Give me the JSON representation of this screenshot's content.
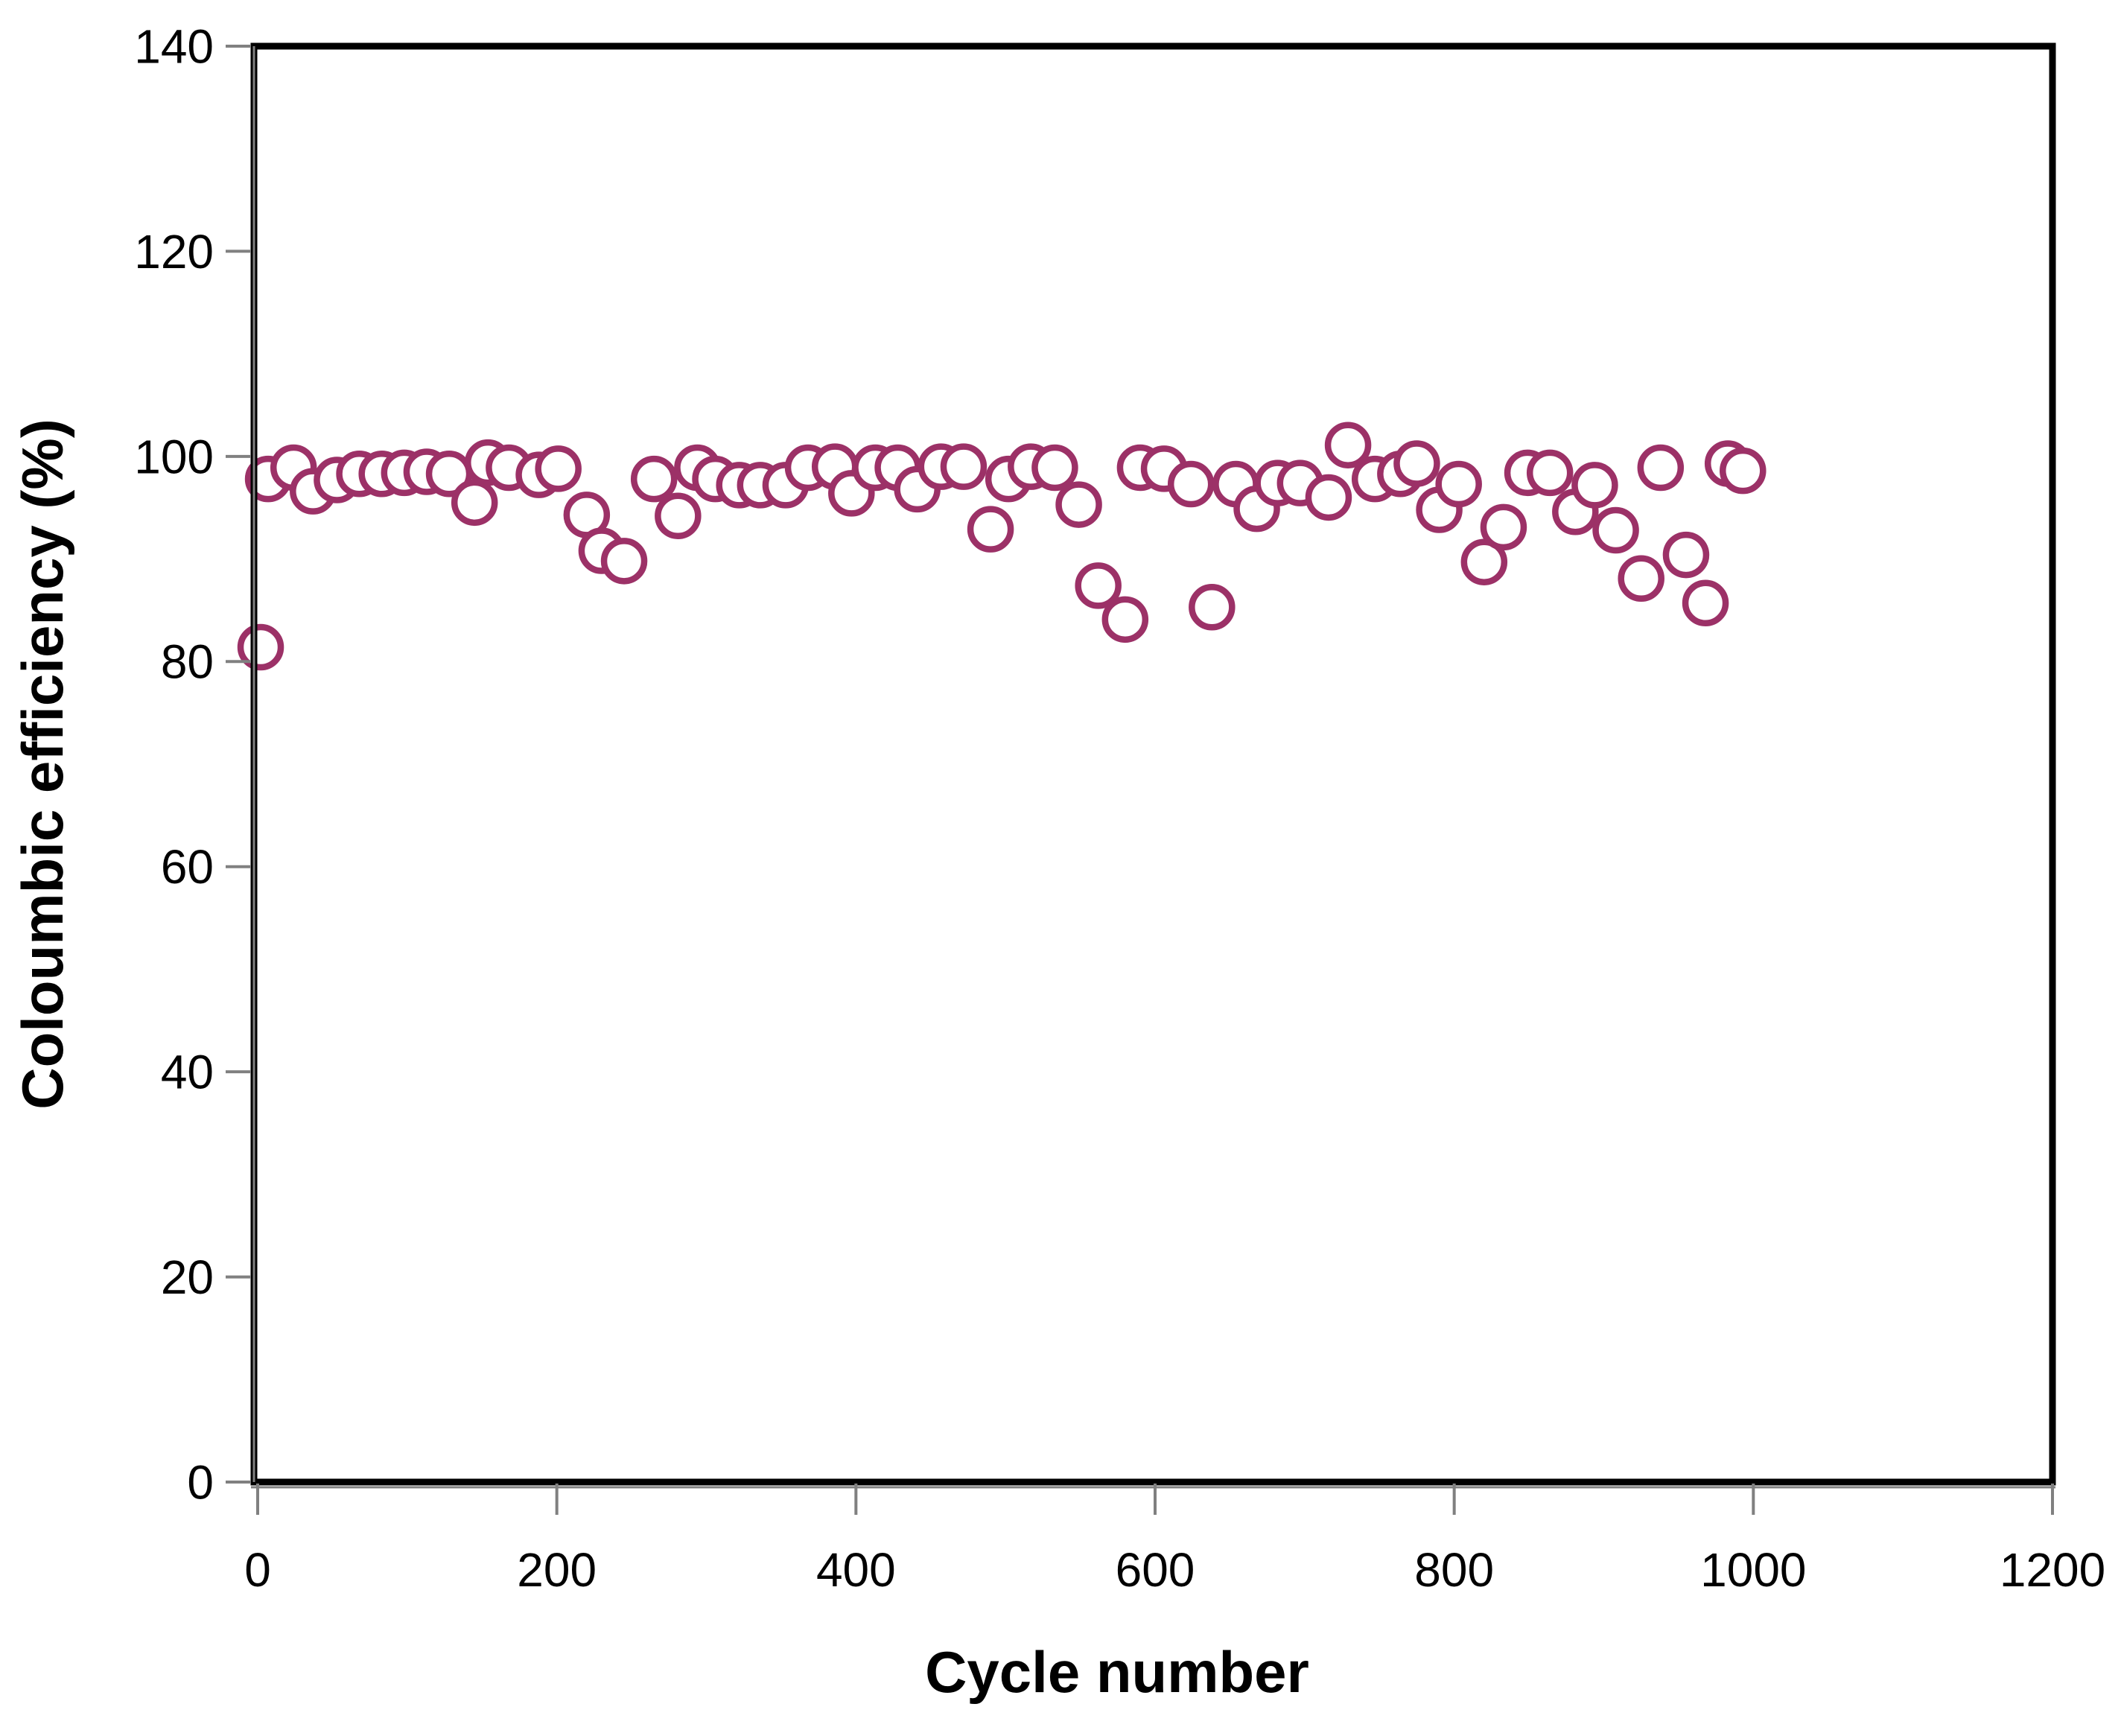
{
  "chart_data": {
    "type": "scatter",
    "title": "",
    "xlabel": "Cycle number",
    "ylabel": "Coloumbic efficiency (%)",
    "xlim": [
      0,
      1200
    ],
    "ylim": [
      0,
      140
    ],
    "x_ticks": [
      0,
      200,
      400,
      600,
      800,
      1000,
      1200
    ],
    "y_ticks": [
      0,
      20,
      40,
      60,
      80,
      100,
      120,
      140
    ],
    "grid": false,
    "legend_position": "none",
    "plot_background": "#ffffff",
    "axis_color": "#000000",
    "tick_color": "#808080",
    "marker": {
      "shape": "open-circle",
      "stroke_color": "#9C3167",
      "fill_color": "#ffffff"
    },
    "series": [
      {
        "name": "Coloumbic efficiency",
        "x": [
          2,
          7,
          24,
          37,
          53,
          68,
          83,
          98,
          113,
          128,
          145,
          154,
          168,
          188,
          201,
          220,
          230,
          245,
          265,
          281,
          294,
          306,
          322,
          336,
          353,
          368,
          386,
          397,
          413,
          428,
          441,
          457,
          472,
          490,
          502,
          517,
          533,
          549,
          562,
          580,
          590,
          606,
          624,
          638,
          654,
          668,
          682,
          697,
          716,
          729,
          747,
          764,
          775,
          790,
          803,
          820,
          833,
          849,
          864,
          881,
          894,
          908,
          925,
          938,
          955,
          968,
          983,
          993
        ],
        "y": [
          81.4,
          97.8,
          98.9,
          96.6,
          97.7,
          98.3,
          98.3,
          98.4,
          98.5,
          98.3,
          95.5,
          99.4,
          98.9,
          98.2,
          98.8,
          94.3,
          90.8,
          89.8,
          97.8,
          94.2,
          98.9,
          97.8,
          97.2,
          97.2,
          97.2,
          98.9,
          99.0,
          96.4,
          98.9,
          98.9,
          96.8,
          99.0,
          99.0,
          92.9,
          97.8,
          99.0,
          98.9,
          95.3,
          87.4,
          84.1,
          98.9,
          98.8,
          97.3,
          85.3,
          97.3,
          94.9,
          97.4,
          97.4,
          96.0,
          101.1,
          97.8,
          98.3,
          99.3,
          94.8,
          97.3,
          89.7,
          93.1,
          98.4,
          98.4,
          94.6,
          97.2,
          92.8,
          88.1,
          98.9,
          90.4,
          85.7,
          99.3,
          98.6
        ]
      }
    ]
  }
}
